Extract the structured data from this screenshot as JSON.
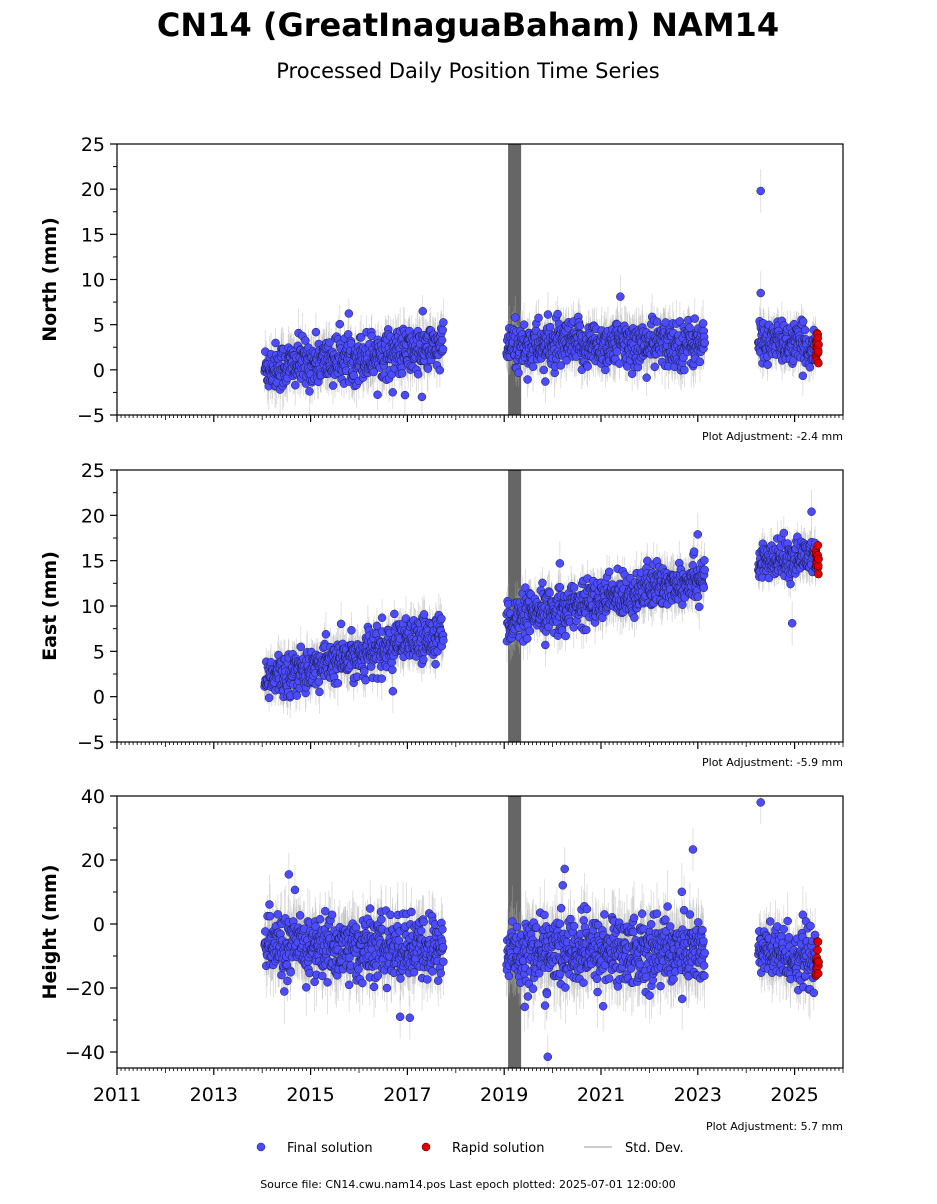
{
  "title": "CN14 (GreatInaguaBaham) NAM14",
  "subtitle": "Processed Daily Position Time Series",
  "legend": {
    "final": "Final solution",
    "rapid": "Rapid solution",
    "stddev": "Std. Dev."
  },
  "footer": "Source file: CN14.cwu.nam14.pos  Last epoch plotted: 2025-07-01 12:00:00",
  "colors": {
    "final": "#4b4bff",
    "rapid": "#e00000",
    "error_bar": "#aaaaaa",
    "gap_band": "#555555"
  },
  "chart_data": [
    {
      "type": "scatter",
      "ylabel": "North (mm)",
      "ylim": [
        -5,
        25
      ],
      "yticks": [
        -5,
        0,
        5,
        10,
        15,
        20,
        25
      ],
      "xlim": [
        2011,
        2026
      ],
      "adjustment": "Plot Adjustment: -2.4 mm",
      "gap_band": [
        2019.08,
        2019.35
      ],
      "segments": [
        {
          "start": 2014.05,
          "end": 2017.75,
          "y_start": 0.2,
          "y_end": 2.5,
          "spread": 1.3
        },
        {
          "start": 2019.05,
          "end": 2023.15,
          "y_start": 2.6,
          "y_end": 2.9,
          "spread": 1.3
        },
        {
          "start": 2024.25,
          "end": 2025.45,
          "y_start": 3.4,
          "y_end": 2.4,
          "spread": 1.1
        }
      ],
      "rapid_segment": {
        "start": 2025.44,
        "end": 2025.5,
        "y": 2.0,
        "spread": 1.2
      },
      "outliers": [
        {
          "x": 2024.3,
          "y": 19.8
        },
        {
          "x": 2024.3,
          "y": 8.5
        },
        {
          "x": 2021.4,
          "y": 8.1
        },
        {
          "x": 2017.3,
          "y": -3.0
        },
        {
          "x": 2016.95,
          "y": -2.8
        },
        {
          "x": 2019.85,
          "y": -1.3
        }
      ]
    },
    {
      "type": "scatter",
      "ylabel": "East (mm)",
      "ylim": [
        -5,
        25
      ],
      "yticks": [
        -5,
        0,
        5,
        10,
        15,
        20,
        25
      ],
      "xlim": [
        2011,
        2026
      ],
      "adjustment": "Plot Adjustment: -5.9 mm",
      "gap_band": [
        2019.08,
        2019.35
      ],
      "segments": [
        {
          "start": 2014.05,
          "end": 2017.75,
          "y_start": 1.8,
          "y_end": 7.0,
          "spread": 1.2
        },
        {
          "start": 2019.05,
          "end": 2023.15,
          "y_start": 8.3,
          "y_end": 13.3,
          "spread": 1.2
        },
        {
          "start": 2024.25,
          "end": 2025.45,
          "y_start": 14.6,
          "y_end": 15.7,
          "spread": 1.0
        }
      ],
      "rapid_segment": {
        "start": 2025.44,
        "end": 2025.5,
        "y": 15.3,
        "spread": 0.9
      },
      "outliers": [
        {
          "x": 2025.35,
          "y": 20.4
        },
        {
          "x": 2023.0,
          "y": 17.9
        },
        {
          "x": 2024.95,
          "y": 8.1
        },
        {
          "x": 2020.15,
          "y": 14.7
        },
        {
          "x": 2016.7,
          "y": 0.6
        },
        {
          "x": 2019.85,
          "y": 5.7
        }
      ]
    },
    {
      "type": "scatter",
      "ylabel": "Height (mm)",
      "ylim": [
        -45,
        40
      ],
      "yticks": [
        -40,
        -20,
        0,
        20,
        40
      ],
      "xlim": [
        2011,
        2026
      ],
      "xticks": [
        2011,
        2013,
        2015,
        2017,
        2019,
        2021,
        2023,
        2025
      ],
      "adjustment": "Plot Adjustment: 5.7 mm",
      "gap_band": [
        2019.08,
        2019.35
      ],
      "segments": [
        {
          "start": 2014.05,
          "end": 2017.75,
          "y_start": -7.0,
          "y_end": -8.0,
          "spread": 5.0
        },
        {
          "start": 2019.05,
          "end": 2023.15,
          "y_start": -9.0,
          "y_end": -8.0,
          "spread": 5.5
        },
        {
          "start": 2024.25,
          "end": 2025.45,
          "y_start": -9.0,
          "y_end": -11.0,
          "spread": 4.5
        }
      ],
      "rapid_segment": {
        "start": 2025.44,
        "end": 2025.5,
        "y": -12.0,
        "spread": 3.5
      },
      "outliers": [
        {
          "x": 2024.3,
          "y": 38.0
        },
        {
          "x": 2022.9,
          "y": 23.3
        },
        {
          "x": 2020.25,
          "y": 17.2
        },
        {
          "x": 2014.55,
          "y": 15.5
        },
        {
          "x": 2019.9,
          "y": -41.5
        },
        {
          "x": 2017.05,
          "y": -29.3
        },
        {
          "x": 2016.85,
          "y": -29.0
        }
      ]
    }
  ]
}
